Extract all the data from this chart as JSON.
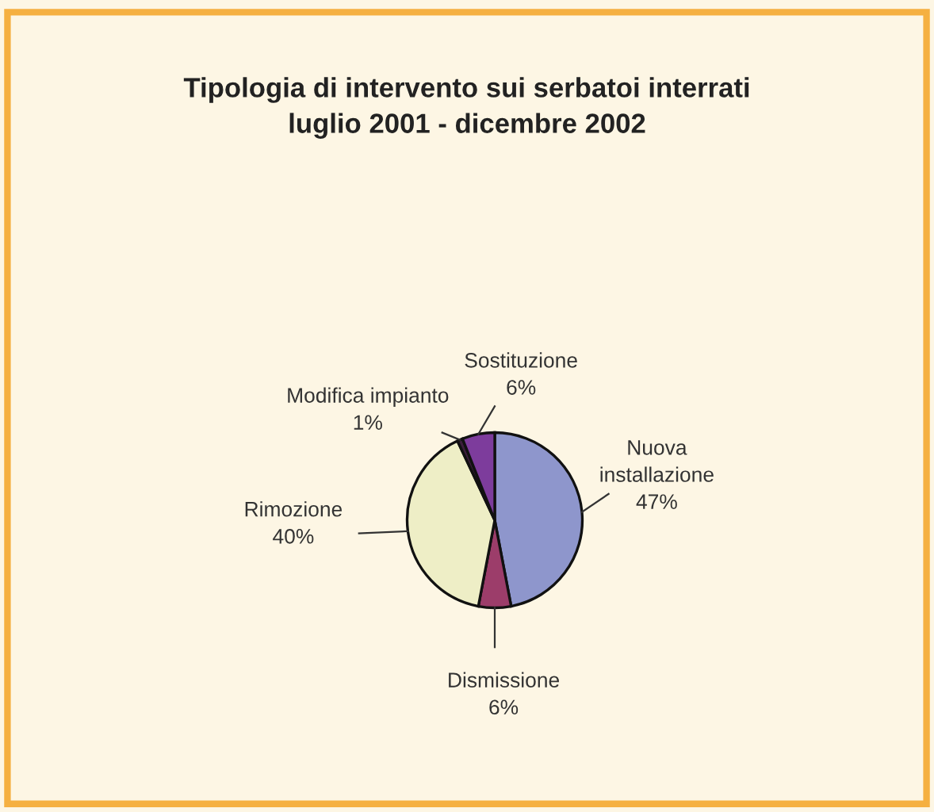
{
  "chart_data": {
    "type": "pie",
    "title": "Tipologia di intervento sui serbatoi interrati\nluglio 2001 - dicembre 2002",
    "categories": [
      "Nuova\ninstallazione",
      "Dismissione",
      "Rimozione",
      "Modifica impianto",
      "Sostituzione"
    ],
    "values": [
      47,
      6,
      40,
      1,
      6
    ],
    "value_labels": [
      "47%",
      "6%",
      "40%",
      "1%",
      "6%"
    ],
    "colors": [
      "#8e96cc",
      "#9c3d6a",
      "#eeeec6",
      "#3c1e3c",
      "#7d3c9c"
    ]
  }
}
